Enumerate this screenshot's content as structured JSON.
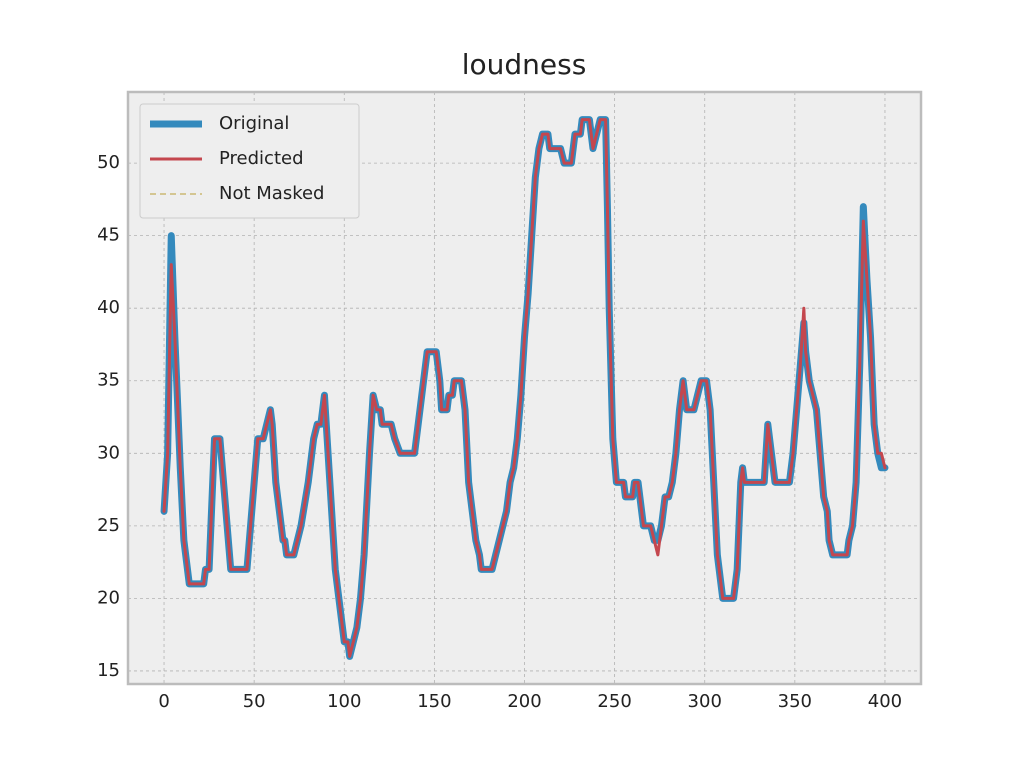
{
  "chart_data": {
    "type": "line",
    "title": "loudness",
    "x": [
      0,
      2,
      4,
      6,
      9,
      11,
      14,
      22,
      23,
      25,
      28,
      31,
      33,
      35,
      37,
      46,
      48,
      50,
      52,
      55,
      57,
      59,
      60,
      62,
      64,
      66,
      67,
      68,
      72,
      74,
      76,
      80,
      83,
      85,
      87,
      89,
      91,
      93,
      95,
      98,
      100,
      102,
      103,
      105,
      107,
      109,
      111,
      114,
      116,
      118,
      120,
      121,
      126,
      128,
      131,
      139,
      142,
      144,
      146,
      151,
      153,
      154,
      157,
      158,
      160,
      161,
      165,
      167,
      169,
      171,
      173,
      175,
      176,
      182,
      184,
      186,
      188,
      190,
      192,
      194,
      196,
      198,
      200,
      202,
      204,
      206,
      208,
      210,
      213,
      214,
      220,
      222,
      226,
      228,
      231,
      232,
      236,
      238,
      240,
      242,
      245,
      246,
      247,
      249,
      251,
      255,
      256,
      260,
      261,
      263,
      264,
      265,
      266,
      270,
      272,
      274,
      276,
      278,
      280,
      282,
      284,
      286,
      288,
      290,
      294,
      296,
      298,
      301,
      303,
      305,
      307,
      309,
      310,
      316,
      318,
      320,
      321,
      322,
      333,
      335,
      337,
      339,
      347,
      349,
      351,
      353,
      355,
      356,
      358,
      360,
      362,
      364,
      366,
      368,
      369,
      371,
      379,
      380,
      382,
      384,
      386,
      388,
      390,
      392,
      394,
      396,
      398,
      400
    ],
    "series": [
      {
        "name": "Original",
        "color": "#348abd",
        "width": 7,
        "values": [
          26,
          30,
          45,
          38,
          29,
          24,
          21,
          21,
          22,
          22,
          31,
          31,
          28,
          25,
          22,
          22,
          25,
          28,
          31,
          31,
          32,
          33,
          32,
          28,
          26,
          24,
          24,
          23,
          23,
          24,
          25,
          28,
          31,
          32,
          32,
          34,
          30,
          26,
          22,
          19,
          17,
          17,
          16,
          17,
          18,
          20,
          23,
          30,
          34,
          33,
          33,
          32,
          32,
          31,
          30,
          30,
          33,
          35,
          37,
          37,
          35,
          33,
          33,
          34,
          34,
          35,
          35,
          33,
          28,
          26,
          24,
          23,
          22,
          22,
          23,
          24,
          25,
          26,
          28,
          29,
          31,
          34,
          38,
          41,
          45,
          49,
          51,
          52,
          52,
          51,
          51,
          50,
          50,
          52,
          52,
          53,
          53,
          51,
          52,
          53,
          53,
          47,
          40,
          31,
          28,
          28,
          27,
          27,
          28,
          28,
          27,
          26,
          25,
          25,
          24,
          24,
          25,
          27,
          27,
          28,
          30,
          33,
          35,
          33,
          33,
          34,
          35,
          35,
          33,
          28,
          23,
          21,
          20,
          20,
          22,
          28,
          29,
          28,
          28,
          32,
          30,
          28,
          28,
          30,
          33,
          36,
          39,
          37,
          35,
          34,
          33,
          30,
          27,
          26,
          24,
          23,
          23,
          24,
          25,
          28,
          36,
          47,
          42,
          38,
          32,
          30,
          29,
          29
        ]
      },
      {
        "name": "Predicted",
        "color": "#c4474e",
        "width": 3,
        "values": [
          26,
          30,
          43,
          38,
          29,
          24,
          21,
          21,
          22,
          22,
          31,
          31,
          28,
          25,
          22,
          22,
          25,
          28,
          31,
          31,
          32,
          33,
          32,
          28,
          26,
          24,
          24,
          23,
          23,
          24,
          25,
          28,
          31,
          32,
          32,
          34,
          30,
          26,
          22,
          19,
          17,
          17,
          16,
          17,
          18,
          20,
          23,
          30,
          34,
          33,
          33,
          32,
          32,
          31,
          30,
          30,
          33,
          35,
          37,
          37,
          35,
          33,
          33,
          34,
          34,
          35,
          35,
          33,
          28,
          26,
          24,
          23,
          22,
          22,
          23,
          24,
          25,
          26,
          28,
          29,
          31,
          34,
          38,
          41,
          45,
          49,
          51,
          52,
          52,
          51,
          51,
          50,
          50,
          52,
          52,
          53,
          53,
          51,
          52,
          53,
          53,
          47,
          40,
          31,
          28,
          28,
          27,
          27,
          28,
          28,
          27,
          26,
          25,
          25,
          24,
          23,
          25,
          27,
          27,
          28,
          30,
          33,
          35,
          33,
          33,
          34,
          35,
          35,
          33,
          28,
          23,
          21,
          20,
          20,
          22,
          28,
          29,
          28,
          28,
          32,
          30,
          28,
          28,
          30,
          33,
          36,
          40,
          37,
          35,
          34,
          33,
          30,
          27,
          26,
          24,
          23,
          23,
          24,
          25,
          28,
          36,
          46,
          42,
          38,
          32,
          30,
          30,
          29
        ]
      },
      {
        "name": "Not Masked",
        "color": "#ccb974",
        "width": 1.5,
        "dash": "6,4",
        "values": [
          26,
          30,
          43,
          38,
          29,
          24,
          21,
          21,
          22,
          22,
          31,
          31,
          28,
          25,
          22,
          22,
          25,
          28,
          31,
          31,
          32,
          33,
          32,
          28,
          26,
          24,
          24,
          23,
          23,
          24,
          25,
          28,
          31,
          32,
          32,
          34,
          30,
          26,
          22,
          19,
          17,
          17,
          16,
          17,
          18,
          20,
          23,
          30,
          34,
          33,
          33,
          32,
          32,
          31,
          30,
          30,
          33,
          35,
          37,
          37,
          35,
          33,
          33,
          34,
          34,
          35,
          35,
          33,
          28,
          26,
          24,
          23,
          22,
          22,
          23,
          24,
          25,
          26,
          28,
          29,
          31,
          34,
          38,
          41,
          45,
          49,
          51,
          52,
          52,
          51,
          51,
          50,
          50,
          52,
          52,
          53,
          53,
          51,
          52,
          53,
          53,
          47,
          40,
          31,
          28,
          28,
          27,
          27,
          28,
          28,
          27,
          26,
          25,
          25,
          24,
          23,
          25,
          27,
          27,
          28,
          30,
          33,
          35,
          33,
          33,
          34,
          35,
          35,
          33,
          28,
          23,
          21,
          20,
          20,
          22,
          28,
          29,
          28,
          28,
          32,
          30,
          28,
          28,
          30,
          33,
          36,
          40,
          37,
          35,
          34,
          33,
          30,
          27,
          26,
          24,
          23,
          23,
          24,
          25,
          28,
          36,
          46,
          42,
          38,
          32,
          30,
          30,
          29
        ]
      }
    ],
    "xlim": [
      -20,
      420
    ],
    "xticks": [
      0,
      50,
      100,
      150,
      200,
      250,
      300,
      350,
      400
    ],
    "ylim": [
      14.1,
      54.9
    ],
    "yticks": [
      15,
      20,
      25,
      30,
      35,
      40,
      45,
      50
    ],
    "grid": true,
    "legend": "upper left"
  }
}
